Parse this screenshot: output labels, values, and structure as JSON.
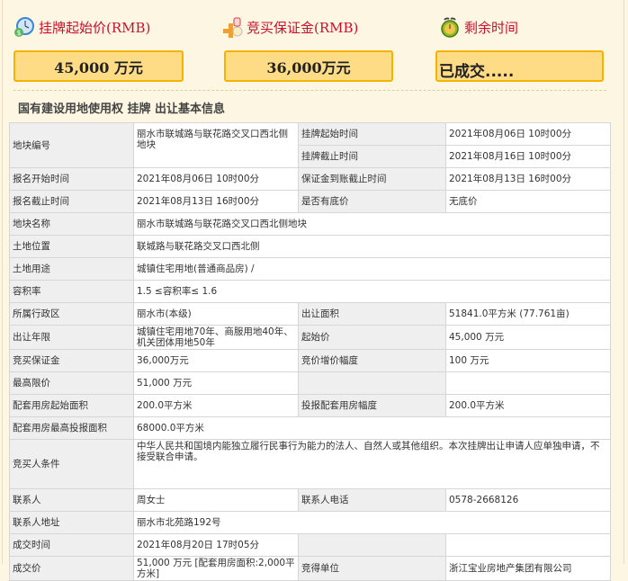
{
  "header": {
    "start_price_label": "挂牌起始价(RMB)",
    "start_price_value": "45,000 万元",
    "deposit_label": "竞买保证金(RMB)",
    "deposit_value": "36,000万元",
    "remaining_label": "剩余时间",
    "remaining_value": "已成交.....",
    "icons": [
      "clock-money-icon",
      "coins-icon",
      "alarm-clock-icon"
    ],
    "colors": {
      "label": "#c8102e",
      "box_bg": "#fedc85",
      "box_border": "#f5b300"
    }
  },
  "section_title": "国有建设用地使用权 挂牌 出让基本信息",
  "rows": [
    [
      "地块编号",
      "丽水市联城路与联花路交叉口西北侧地块",
      "挂牌起始时间",
      "2021年08月06日 10时00分"
    ],
    [
      "挂牌截止时间",
      "2021年08月16日 10时00分"
    ],
    [
      "报名开始时间",
      "2021年08月06日 10时00分",
      "保证金到账截止时间",
      "2021年08月13日 16时00分"
    ],
    [
      "报名截止时间",
      "2021年08月13日 16时00分",
      "是否有底价",
      "无底价"
    ],
    [
      "地块名称",
      "丽水市联城路与联花路交叉口西北侧地块"
    ],
    [
      "土地位置",
      "联城路与联花路交叉口西北侧"
    ],
    [
      "土地用途",
      "城镇住宅用地(普通商品房) /"
    ],
    [
      "容积率",
      "1.5 ≤容积率≤ 1.6"
    ],
    [
      "所属行政区",
      "丽水市(本级)",
      "出让面积",
      "51841.0平方米 (77.761亩)"
    ],
    [
      "出让年限",
      "城镇住宅用地70年、商服用地40年、机关团体用地50年",
      "起始价",
      "45,000 万元"
    ],
    [
      "竞买保证金",
      "36,000万元",
      "竞价增价幅度",
      "100 万元"
    ],
    [
      "最高限价",
      "51,000 万元",
      "",
      ""
    ],
    [
      "配套用房起始面积",
      "200.0平方米",
      "投报配套用房幅度",
      "200.0平方米"
    ],
    [
      "配套用房最高投报面积",
      "68000.0平方米"
    ],
    [
      "竞买人条件",
      "中华人民共和国境内能独立履行民事行为能力的法人、自然人或其他组织。本次挂牌出让申请人应单独申请，不接受联合申请。"
    ],
    [
      "联系人",
      "周女士",
      "联系人电话",
      "0578-2668126"
    ],
    [
      "联系人地址",
      "丽水市北苑路192号"
    ],
    [
      "成交时间",
      "2021年08月20日 17时05分",
      "",
      ""
    ],
    [
      "成交价",
      "51,000 万元 [配套用房面积:2,000平方米]",
      "竞得单位",
      "浙江宝业房地产集团有限公司"
    ]
  ]
}
